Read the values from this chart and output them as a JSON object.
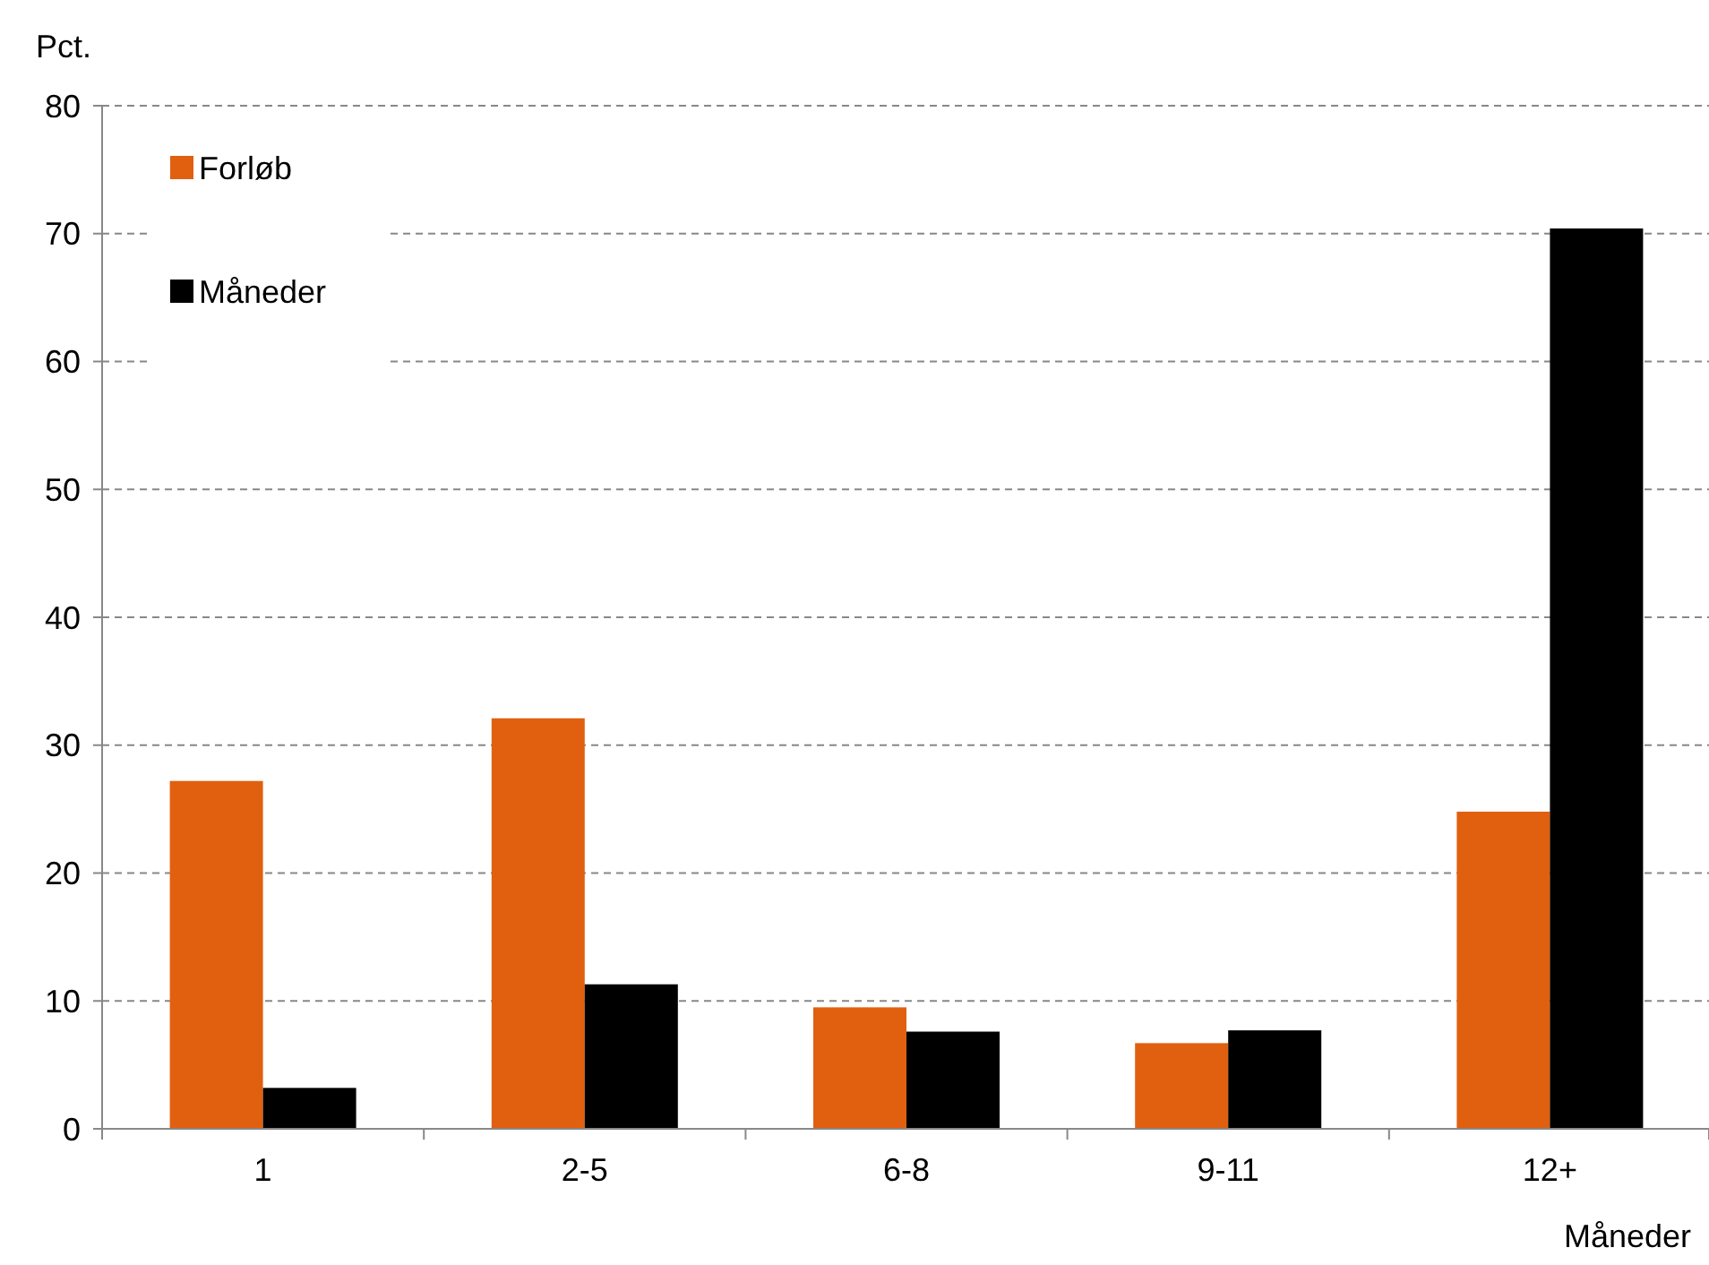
{
  "chart_data": {
    "type": "bar",
    "xlabel": "Måneder",
    "ylabel": "Pct.",
    "categories": [
      "1",
      "2-5",
      "6-8",
      "9-11",
      "12+"
    ],
    "series": [
      {
        "name": "Forløb",
        "color": "#e06010",
        "values": [
          27.2,
          32.1,
          9.5,
          6.7,
          24.8
        ]
      },
      {
        "name": "Måneder",
        "color": "#000000",
        "values": [
          3.2,
          11.3,
          7.6,
          7.7,
          70.4
        ]
      }
    ],
    "ylim": [
      0,
      80
    ],
    "yticks": [
      0,
      10,
      20,
      30,
      40,
      50,
      60,
      70,
      80
    ],
    "grid": "y",
    "legend": "top left"
  }
}
